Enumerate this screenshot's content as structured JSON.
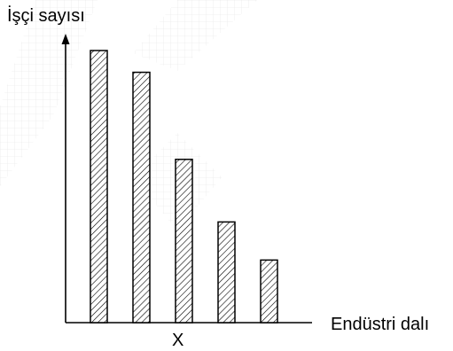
{
  "chart_data": {
    "type": "bar",
    "title": "",
    "ylabel": "İşçi sayısı",
    "xlabel": "Endüstri dalı",
    "x_marker": "X",
    "categories": [
      "",
      "",
      "",
      "",
      ""
    ],
    "values": [
      100,
      92,
      60,
      37,
      23
    ],
    "ylim": [
      0,
      105
    ],
    "grid": false,
    "legend": "none",
    "bar_style": "diagonal-hatch",
    "colors": {
      "bar_fill": "#ffffff",
      "hatch": "#000000",
      "axis": "#000000",
      "watermark": "#dcdcdc"
    }
  }
}
